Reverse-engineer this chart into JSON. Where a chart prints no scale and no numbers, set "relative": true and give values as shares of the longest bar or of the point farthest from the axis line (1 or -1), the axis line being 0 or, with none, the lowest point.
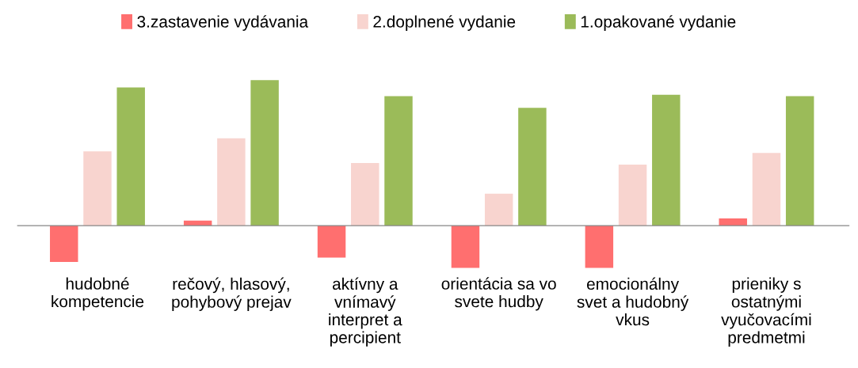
{
  "chart_data": {
    "type": "bar",
    "relative": true,
    "legend": "top",
    "grid": false,
    "categories": [
      "hudobné\nkompetencie",
      "rečový, hlasový,\npohybový prejav",
      "aktívny a\nvnímavý\ninterpret a\npercipient",
      "orientácia sa vo\nsvete hudby",
      "emocionálny\nsvet a hudobný\nvkus",
      "prieniky s\nostatnými\nvyučovacími\npredmetmi"
    ],
    "series": [
      {
        "name": "3.zastavenie vydávania",
        "color": "#ff6f6f",
        "values": [
          -0.25,
          0.035,
          -0.22,
          -0.29,
          -0.29,
          0.05
        ]
      },
      {
        "name": "2.doplnené vydanie",
        "color": "#f8d4cf",
        "values": [
          0.51,
          0.6,
          0.43,
          0.22,
          0.42,
          0.5
        ]
      },
      {
        "name": "1.opakované vydanie",
        "color": "#9bbb59",
        "values": [
          0.95,
          1.0,
          0.89,
          0.81,
          0.9,
          0.89
        ]
      }
    ]
  }
}
